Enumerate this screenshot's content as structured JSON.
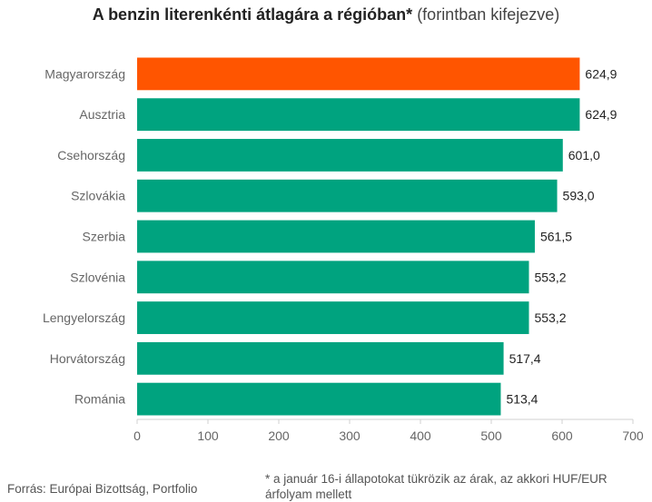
{
  "title": {
    "bold": "A benzin literenkénti átlagára a régióban*",
    "normal": "(forintban kifejezve)"
  },
  "chart_data": {
    "type": "bar",
    "orientation": "horizontal",
    "title": "A benzin literenkénti átlagára a régióban* (forintban kifejezve)",
    "categories": [
      "Magyarország",
      "Ausztria",
      "Csehország",
      "Szlovákia",
      "Szerbia",
      "Szlovénia",
      "Lengyelország",
      "Horvátország",
      "Románia"
    ],
    "values": [
      624.9,
      624.9,
      601.0,
      593.0,
      561.5,
      553.2,
      553.2,
      517.4,
      513.4
    ],
    "value_labels": [
      "624,9",
      "624,9",
      "601,0",
      "593,0",
      "561,5",
      "553,2",
      "553,2",
      "517,4",
      "513,4"
    ],
    "xlim": [
      0,
      700
    ],
    "xticks": [
      0,
      100,
      200,
      300,
      400,
      500,
      600,
      700
    ],
    "grid": false,
    "colors": {
      "highlight": "#ff5500",
      "default": "#00a37f",
      "axis": "#d0d0d0"
    },
    "highlight_index": 0
  },
  "footer": {
    "source": "Forrás: Európai Bizottság, Portfolio",
    "note": "* a január 16-i állapotokat tükrözik az árak, az akkori HUF/EUR árfolyam mellett"
  }
}
